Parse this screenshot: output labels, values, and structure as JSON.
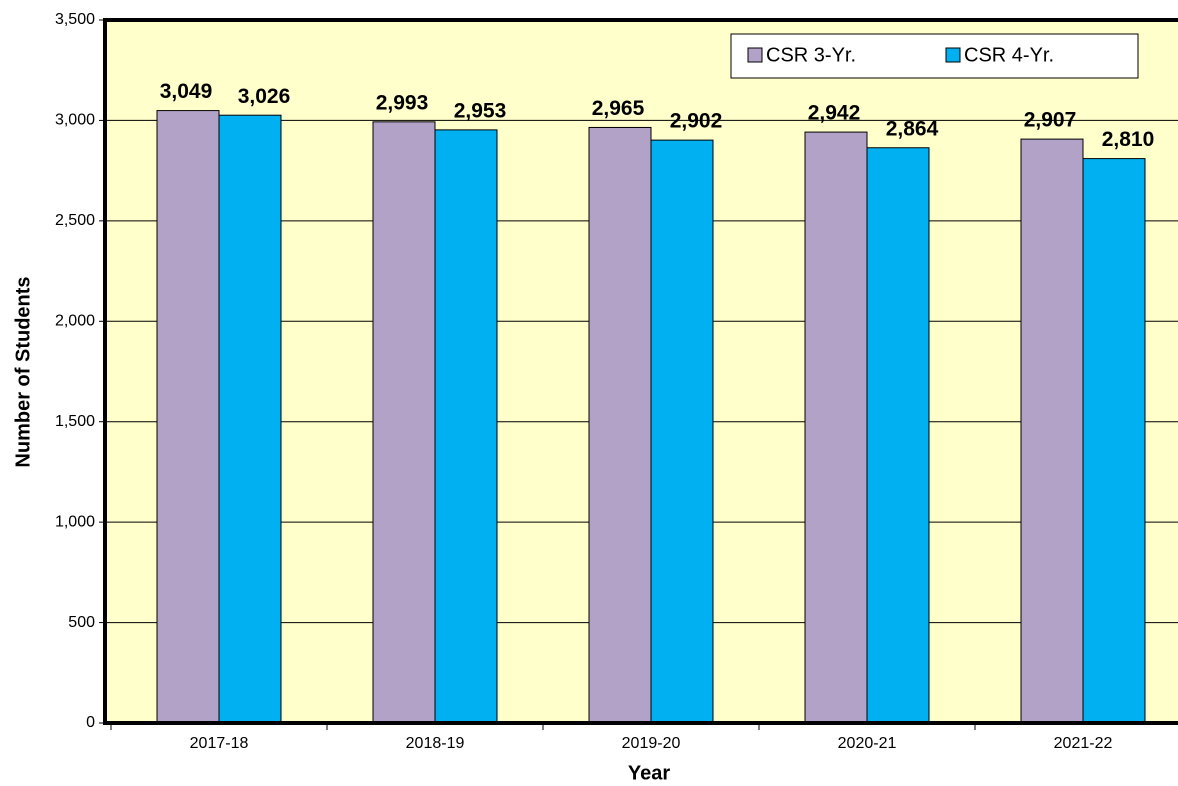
{
  "chart_data": {
    "type": "bar",
    "categories": [
      "2017-18",
      "2018-19",
      "2019-20",
      "2020-21",
      "2021-22"
    ],
    "series": [
      {
        "name": "CSR 3-Yr.",
        "color": "#b3a2c7",
        "values": [
          3049,
          2993,
          2965,
          2942,
          2907
        ],
        "value_labels": [
          "3,049",
          "2,993",
          "2,965",
          "2,942",
          "2,907"
        ]
      },
      {
        "name": "CSR 4-Yr.",
        "color": "#00b0f0",
        "values": [
          3026,
          2953,
          2902,
          2864,
          2810
        ],
        "value_labels": [
          "3,026",
          "2,953",
          "2,902",
          "2,864",
          "2,810"
        ]
      }
    ],
    "x_label": "Year",
    "y_label": "Number of Students",
    "ylim": [
      0,
      3500
    ],
    "yticks": [
      0,
      500,
      {
        "value": 1000,
        "label": "1,000"
      },
      {
        "value": 1500,
        "label": "1,500"
      },
      {
        "value": 2000,
        "label": "2,000"
      },
      {
        "value": 2500,
        "label": "2,500"
      },
      {
        "value": 3000,
        "label": "3,000"
      },
      {
        "value": 3500,
        "label": "3,500"
      }
    ],
    "grid": true,
    "legend": "top-right",
    "background": "#ffffcc"
  }
}
